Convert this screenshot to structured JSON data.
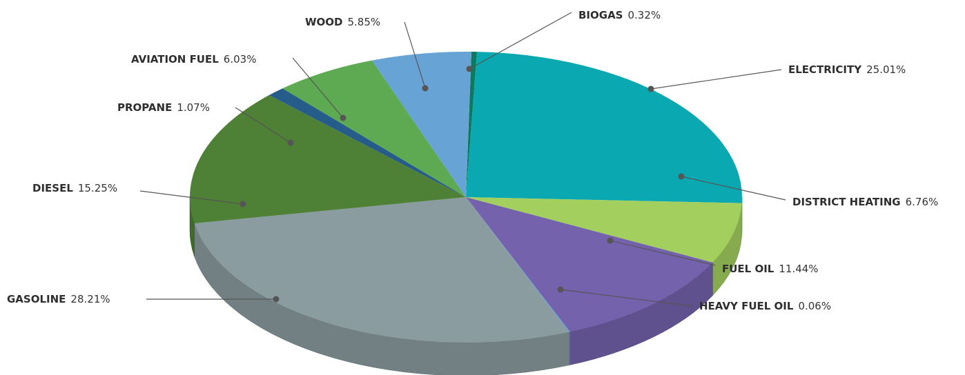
{
  "chart_data": {
    "type": "pie",
    "categories": [
      "BIOGAS",
      "ELECTRICITY",
      "DISTRICT HEATING",
      "FUEL OIL",
      "HEAVY FUEL OIL",
      "GASOLINE",
      "DIESEL",
      "PROPANE",
      "AVIATION FUEL",
      "WOOD"
    ],
    "values": [
      0.32,
      25.01,
      6.76,
      11.44,
      0.06,
      28.21,
      15.25,
      1.07,
      6.03,
      5.85
    ],
    "value_labels": [
      "0.32%",
      "25.01%",
      "6.76%",
      "11.44%",
      "0.06%",
      "28.21%",
      "15.25%",
      "1.07%",
      "6.03%",
      "5.85%"
    ],
    "colors": [
      "#0b7a5f",
      "#0aa8b0",
      "#a3cf5f",
      "#7462ad",
      "#5b9bd5",
      "#8b9ca0",
      "#4e8035",
      "#255c8a",
      "#5daa52",
      "#67a3d4"
    ]
  }
}
